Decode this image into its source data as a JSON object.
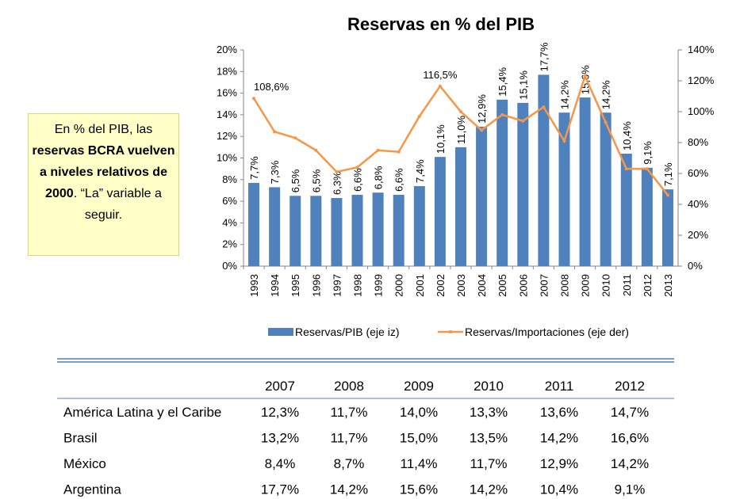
{
  "chart_data": {
    "type": "bar_line",
    "title": "Reservas en % del PIB",
    "categories": [
      "1993",
      "1994",
      "1995",
      "1996",
      "1997",
      "1998",
      "1999",
      "2000",
      "2001",
      "2002",
      "2003",
      "2004",
      "2005",
      "2006",
      "2007",
      "2008",
      "2009",
      "2010",
      "2011",
      "2012",
      "2013"
    ],
    "series": [
      {
        "name": "Reservas/PIB (eje iz)",
        "color": "#4f81bd",
        "type": "bar",
        "values": [
          7.7,
          7.3,
          6.5,
          6.5,
          6.3,
          6.6,
          6.8,
          6.6,
          7.4,
          10.1,
          11.0,
          12.9,
          15.4,
          15.1,
          17.7,
          14.2,
          15.6,
          14.2,
          10.4,
          9.1,
          7.1
        ],
        "value_labels": [
          "7,7%",
          "7,3%",
          "6,5%",
          "6,5%",
          "6,3%",
          "6,6%",
          "6,8%",
          "6,6%",
          "7,4%",
          "10,1%",
          "11,0%",
          "12,9%",
          "15,4%",
          "15,1%",
          "17,7%",
          "14,2%",
          "15,6%",
          "14,2%",
          "10,4%",
          "9,1%",
          "7,1%"
        ]
      },
      {
        "name": "Reservas/Importaciones (eje der)",
        "color": "#f79646",
        "type": "line",
        "axis": "y2",
        "values": [
          108.6,
          87,
          83,
          75,
          61,
          64,
          75,
          74,
          97,
          116.5,
          100,
          88,
          98,
          94,
          103,
          81,
          123,
          93,
          63,
          63,
          46
        ],
        "value_labels": [
          "108,6%",
          null,
          null,
          null,
          null,
          null,
          null,
          null,
          null,
          "116,5%",
          null,
          null,
          null,
          null,
          null,
          null,
          null,
          null,
          null,
          null,
          null
        ]
      }
    ],
    "ylim": [
      0,
      20
    ],
    "yticks": [
      {
        "value": 0,
        "label": "0%"
      },
      {
        "value": 2,
        "label": "2%"
      },
      {
        "value": 4,
        "label": "4%"
      },
      {
        "value": 6,
        "label": "6%"
      },
      {
        "value": 8,
        "label": "8%"
      },
      {
        "value": 10,
        "label": "10%"
      },
      {
        "value": 12,
        "label": "12%"
      },
      {
        "value": 14,
        "label": "14%"
      },
      {
        "value": 16,
        "label": "16%"
      },
      {
        "value": 18,
        "label": "18%"
      },
      {
        "value": 20,
        "label": "20%"
      }
    ],
    "y2lim": [
      0,
      140
    ],
    "y2ticks": [
      {
        "value": 0,
        "label": "0%"
      },
      {
        "value": 20,
        "label": "20%"
      },
      {
        "value": 40,
        "label": "40%"
      },
      {
        "value": 60,
        "label": "60%"
      },
      {
        "value": 80,
        "label": "80%"
      },
      {
        "value": 100,
        "label": "100%"
      },
      {
        "value": 120,
        "label": "120%"
      },
      {
        "value": 140,
        "label": "140%"
      }
    ],
    "legend": "bottom",
    "grid": false
  },
  "callout": {
    "parts": [
      {
        "text": "En % del PIB, las ",
        "bold": false
      },
      {
        "text": "reservas BCRA vuelven a niveles relativos de 2000",
        "bold": true
      },
      {
        "text": ". “La” variable a seguir.",
        "bold": false
      }
    ]
  },
  "table": {
    "columns": [
      "2007",
      "2008",
      "2009",
      "2010",
      "2011",
      "2012"
    ],
    "rows": [
      [
        "América Latina y el Caribe",
        "12,3%",
        "11,7%",
        "14,0%",
        "13,3%",
        "13,6%",
        "14,7%"
      ],
      [
        "Brasil",
        "13,2%",
        "11,7%",
        "15,0%",
        "13,5%",
        "14,2%",
        "16,6%"
      ],
      [
        "México",
        "8,4%",
        "8,7%",
        "11,4%",
        "11,7%",
        "12,9%",
        "14,2%"
      ],
      [
        "Argentina",
        "17,7%",
        "14,2%",
        "15,6%",
        "14,2%",
        "10,4%",
        "9,1%"
      ]
    ]
  }
}
